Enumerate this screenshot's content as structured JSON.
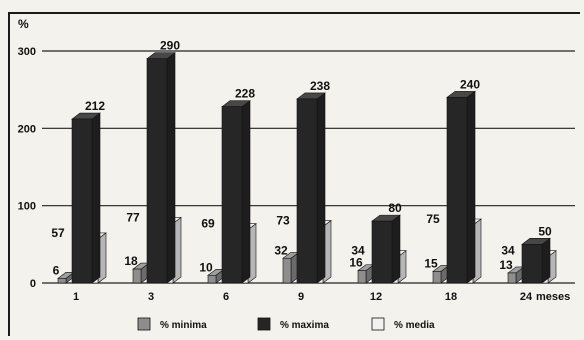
{
  "chart_data": {
    "type": "bar",
    "ylabel": "%",
    "xlabel": "meses",
    "categories": [
      "1",
      "3",
      "6",
      "9",
      "12",
      "18",
      "24"
    ],
    "ylim": [
      0,
      300
    ],
    "yticks": [
      0,
      100,
      200,
      300
    ],
    "grid": true,
    "legend_position": "bottom",
    "series": [
      {
        "name": "% minima",
        "values": [
          6,
          18,
          10,
          32,
          16,
          15,
          13
        ],
        "color": "#8e8e8e"
      },
      {
        "name": "% maxima",
        "values": [
          212,
          290,
          228,
          238,
          80,
          240,
          50
        ],
        "color": "#262626"
      },
      {
        "name": "% media",
        "values": [
          57,
          77,
          69,
          73,
          34,
          75,
          34
        ],
        "color": "#f2f2f2"
      }
    ]
  }
}
